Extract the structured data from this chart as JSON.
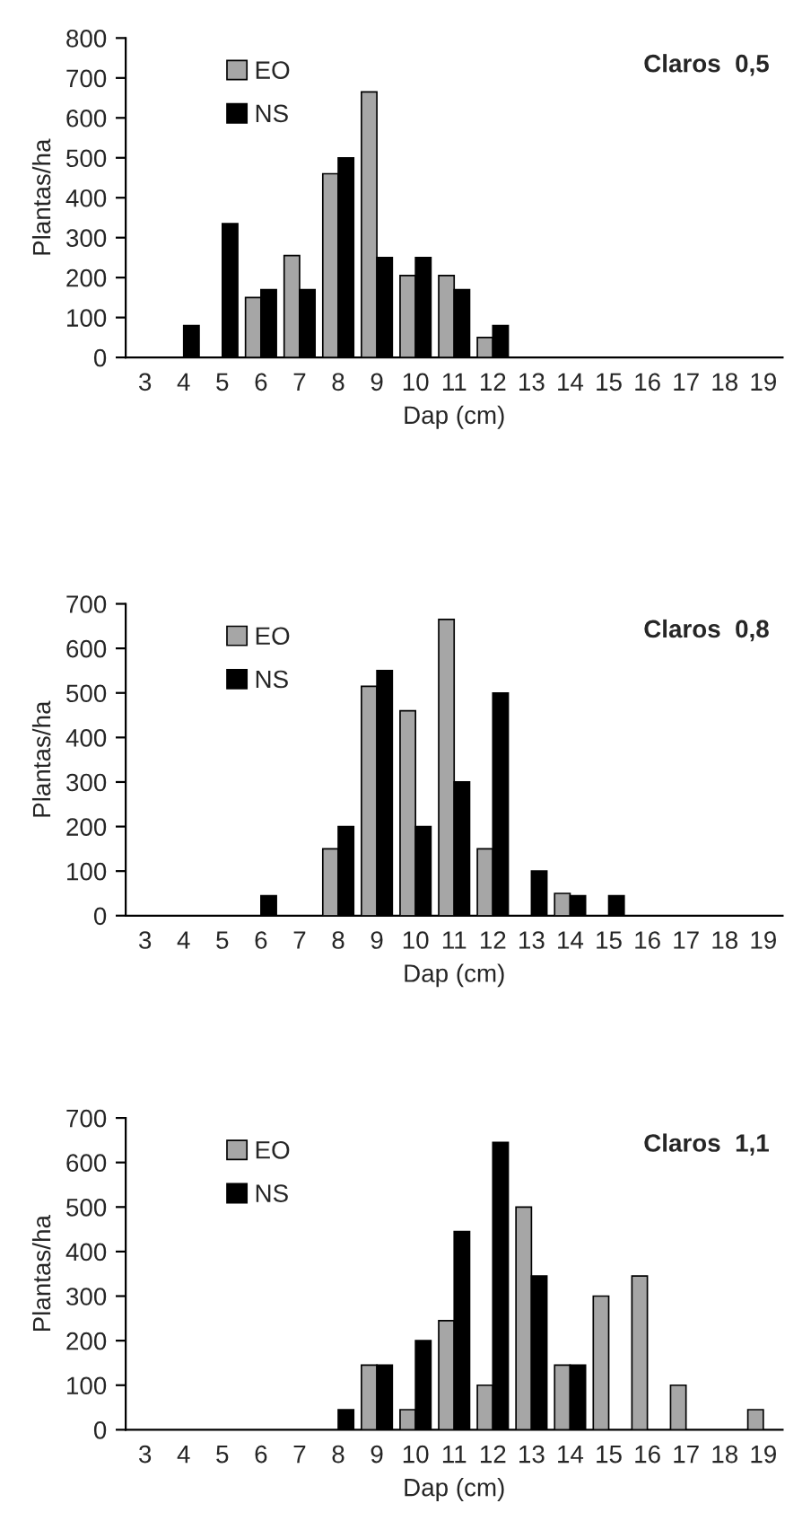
{
  "chart_data": [
    {
      "type": "bar",
      "title": "Claros  0,5",
      "xlabel": "Dap (cm)",
      "ylabel": "Plantas/ha",
      "categories": [
        "3",
        "4",
        "5",
        "6",
        "7",
        "8",
        "9",
        "10",
        "11",
        "12",
        "13",
        "14",
        "15",
        "16",
        "17",
        "18",
        "19"
      ],
      "series": [
        {
          "name": "EO",
          "color": "#a6a6a6",
          "values": [
            null,
            null,
            null,
            150,
            255,
            460,
            665,
            205,
            205,
            50,
            null,
            null,
            null,
            null,
            null,
            null,
            null
          ]
        },
        {
          "name": "NS",
          "color": "#000000",
          "values": [
            null,
            80,
            335,
            170,
            170,
            500,
            250,
            250,
            170,
            80,
            null,
            null,
            null,
            null,
            null,
            null,
            null
          ]
        }
      ],
      "ylim": [
        0,
        800
      ],
      "yticks": [
        0,
        100,
        200,
        300,
        400,
        500,
        600,
        700,
        800
      ],
      "legend": "top left",
      "grid": false
    },
    {
      "type": "bar",
      "title": "Claros  0,8",
      "xlabel": "Dap (cm)",
      "ylabel": "Plantas/ha",
      "categories": [
        "3",
        "4",
        "5",
        "6",
        "7",
        "8",
        "9",
        "10",
        "11",
        "12",
        "13",
        "14",
        "15",
        "16",
        "17",
        "18",
        "19"
      ],
      "series": [
        {
          "name": "EO",
          "color": "#a6a6a6",
          "values": [
            null,
            null,
            null,
            null,
            null,
            150,
            515,
            460,
            665,
            150,
            null,
            50,
            null,
            null,
            null,
            null,
            null
          ]
        },
        {
          "name": "NS",
          "color": "#000000",
          "values": [
            null,
            null,
            null,
            45,
            null,
            200,
            550,
            200,
            300,
            500,
            100,
            45,
            45,
            null,
            null,
            null,
            null
          ]
        }
      ],
      "ylim": [
        0,
        700
      ],
      "yticks": [
        0,
        100,
        200,
        300,
        400,
        500,
        600,
        700
      ],
      "legend": "top left",
      "grid": false
    },
    {
      "type": "bar",
      "title": "Claros  1,1",
      "xlabel": "Dap (cm)",
      "ylabel": "Plantas/ha",
      "categories": [
        "3",
        "4",
        "5",
        "6",
        "7",
        "8",
        "9",
        "10",
        "11",
        "12",
        "13",
        "14",
        "15",
        "16",
        "17",
        "18",
        "19"
      ],
      "series": [
        {
          "name": "EO",
          "color": "#a6a6a6",
          "values": [
            null,
            null,
            null,
            null,
            null,
            null,
            145,
            45,
            245,
            100,
            500,
            145,
            300,
            345,
            100,
            null,
            45
          ]
        },
        {
          "name": "NS",
          "color": "#000000",
          "values": [
            null,
            null,
            null,
            null,
            null,
            45,
            145,
            200,
            445,
            645,
            345,
            145,
            null,
            null,
            null,
            null,
            null
          ]
        }
      ],
      "ylim": [
        0,
        700
      ],
      "yticks": [
        0,
        100,
        200,
        300,
        400,
        500,
        600,
        700
      ],
      "legend": "top left",
      "grid": false
    }
  ]
}
